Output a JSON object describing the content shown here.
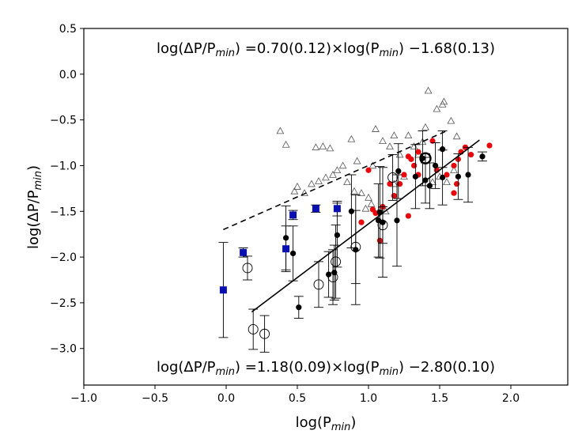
{
  "chart_data": {
    "type": "scatter",
    "xlim": [
      -1.0,
      2.4
    ],
    "ylim": [
      -3.4,
      0.5
    ],
    "x_ticks": [
      -1.0,
      -0.5,
      0.0,
      0.5,
      1.0,
      1.5,
      2.0
    ],
    "x_tick_labels": [
      "−1.0",
      "−0.5",
      "0.0",
      "0.5",
      "1.0",
      "1.5",
      "2.0"
    ],
    "y_ticks": [
      -3.0,
      -2.5,
      -2.0,
      -1.5,
      -1.0,
      -0.5,
      0.0,
      0.5
    ],
    "y_tick_labels": [
      "−3.0",
      "−2.5",
      "−2.0",
      "−1.5",
      "−1.0",
      "−0.5",
      "0.0",
      "0.5"
    ],
    "xlabel": {
      "base": "log(P",
      "sub": "min",
      "end": ")"
    },
    "ylabel": {
      "base": "log(ΔP/P",
      "sub": "min",
      "end": ")"
    },
    "annotations": {
      "top": {
        "lhs_base": "log(ΔP/P",
        "lhs_sub": "min",
        "mid": ") =0.70(0.12)×log(P",
        "rhs_sub": "min",
        "end": ") −1.68(0.13)"
      },
      "bottom": {
        "lhs_base": "log(ΔP/P",
        "lhs_sub": "min",
        "mid": ") =1.18(0.09)×log(P",
        "rhs_sub": "min",
        "end": ") −2.80(0.10)"
      }
    },
    "fit_lines": [
      {
        "name": "upper fit (dashed)",
        "x": [
          -0.02,
          1.55
        ],
        "y": [
          -1.7,
          -0.62
        ],
        "style": "dashed"
      },
      {
        "name": "lower fit (solid)",
        "x": [
          0.18,
          1.78
        ],
        "y": [
          -2.6,
          -0.72
        ],
        "style": "solid"
      }
    ],
    "series": [
      {
        "name": "open triangles",
        "marker": "triangle-open",
        "color": "#555555",
        "points": [
          [
            0.38,
            -0.62
          ],
          [
            0.42,
            -0.77
          ],
          [
            0.63,
            -0.8
          ],
          [
            0.68,
            -0.79
          ],
          [
            0.73,
            -0.81
          ],
          [
            0.88,
            -0.71
          ],
          [
            1.05,
            -0.6
          ],
          [
            1.1,
            -0.73
          ],
          [
            1.15,
            -0.79
          ],
          [
            1.18,
            -0.67
          ],
          [
            1.22,
            -0.88
          ],
          [
            1.28,
            -0.67
          ],
          [
            1.32,
            -0.79
          ],
          [
            1.4,
            -0.58
          ],
          [
            1.42,
            -0.18
          ],
          [
            1.48,
            -0.38
          ],
          [
            1.52,
            -0.33
          ],
          [
            1.53,
            -0.3
          ],
          [
            1.58,
            -0.51
          ],
          [
            1.62,
            -0.68
          ],
          [
            1.35,
            -0.88
          ],
          [
            1.38,
            -0.74
          ],
          [
            0.82,
            -1.0
          ],
          [
            0.78,
            -1.05
          ],
          [
            0.75,
            -1.1
          ],
          [
            0.7,
            -1.13
          ],
          [
            0.65,
            -1.17
          ],
          [
            0.6,
            -1.2
          ],
          [
            0.55,
            -1.3
          ],
          [
            0.5,
            -1.23
          ],
          [
            0.48,
            -1.28
          ],
          [
            0.85,
            -1.18
          ],
          [
            0.9,
            -1.28
          ],
          [
            0.95,
            -1.3
          ],
          [
            1.0,
            -1.35
          ],
          [
            1.02,
            -1.42
          ],
          [
            1.08,
            -1.48
          ],
          [
            1.12,
            -1.5
          ],
          [
            1.18,
            -1.2
          ],
          [
            1.25,
            -1.12
          ],
          [
            0.98,
            -1.47
          ],
          [
            1.45,
            -1.18
          ],
          [
            1.5,
            -1.12
          ],
          [
            1.55,
            -1.18
          ],
          [
            1.6,
            -1.05
          ],
          [
            0.92,
            -0.95
          ],
          [
            1.03,
            -1.0
          ]
        ]
      },
      {
        "name": "red dots",
        "marker": "circle",
        "color": "#e8070a",
        "points": [
          [
            0.95,
            -1.62
          ],
          [
            1.0,
            -1.05
          ],
          [
            1.03,
            -1.48
          ],
          [
            1.05,
            -1.52
          ],
          [
            1.08,
            -1.82
          ],
          [
            1.1,
            -1.45
          ],
          [
            1.15,
            -1.2
          ],
          [
            1.18,
            -1.33
          ],
          [
            1.22,
            -1.2
          ],
          [
            1.25,
            -1.1
          ],
          [
            1.28,
            -0.9
          ],
          [
            1.3,
            -0.93
          ],
          [
            1.32,
            -1.0
          ],
          [
            1.35,
            -1.1
          ],
          [
            1.45,
            -0.73
          ],
          [
            1.48,
            -1.05
          ],
          [
            1.55,
            -1.1
          ],
          [
            1.6,
            -1.0
          ],
          [
            1.63,
            -0.93
          ],
          [
            1.65,
            -0.85
          ],
          [
            1.68,
            -0.8
          ],
          [
            1.72,
            -0.88
          ],
          [
            1.85,
            -0.78
          ],
          [
            1.6,
            -1.3
          ],
          [
            1.62,
            -1.2
          ],
          [
            1.28,
            -1.55
          ],
          [
            1.35,
            -0.85
          ]
        ]
      },
      {
        "name": "black dots with error bars",
        "marker": "circle",
        "color": "#000000",
        "points": [
          [
            0.42,
            -1.79,
            0.35
          ],
          [
            0.47,
            -1.96,
            0.3
          ],
          [
            0.51,
            -2.55,
            0.12
          ],
          [
            0.72,
            -2.19,
            0.25
          ],
          [
            0.76,
            -2.17,
            0.3
          ],
          [
            0.78,
            -1.76,
            0.35
          ],
          [
            0.88,
            -1.5,
            0.4
          ],
          [
            0.91,
            -1.92,
            0.6
          ],
          [
            1.07,
            -1.6,
            0.4
          ],
          [
            1.08,
            -1.51,
            0.5
          ],
          [
            1.1,
            -1.62,
            0.6
          ],
          [
            1.2,
            -1.6,
            0.5
          ],
          [
            1.21,
            -1.06,
            0.3
          ],
          [
            1.33,
            -1.12,
            0.35
          ],
          [
            1.38,
            -0.92,
            0.3
          ],
          [
            1.4,
            -1.16,
            0.25
          ],
          [
            1.43,
            -1.22,
            0.25
          ],
          [
            1.47,
            -1.0,
            0.25
          ],
          [
            1.52,
            -0.82,
            0.2
          ],
          [
            1.52,
            -1.13,
            0.3
          ],
          [
            1.63,
            -1.12,
            0.25
          ],
          [
            1.7,
            -1.1,
            0.3
          ],
          [
            1.8,
            -0.9,
            0.05
          ]
        ]
      },
      {
        "name": "open circles with error bars",
        "marker": "circle-open",
        "color": "#000000",
        "points": [
          [
            0.15,
            -2.12,
            0.13
          ],
          [
            0.19,
            -2.79,
            0.22
          ],
          [
            0.27,
            -2.84,
            0.2
          ],
          [
            0.65,
            -2.3,
            0.25
          ],
          [
            0.75,
            -2.22,
            0.3
          ],
          [
            0.77,
            -2.05,
            0.4
          ],
          [
            0.91,
            -1.89,
            0.4
          ],
          [
            1.1,
            -1.65,
            0.2
          ],
          [
            1.17,
            -1.13,
            0.25
          ],
          [
            1.4,
            -0.92,
            0.05
          ]
        ]
      },
      {
        "name": "blue squares with error bars",
        "marker": "square",
        "color": "#0a10b0",
        "points": [
          [
            -0.02,
            -2.36,
            0.52
          ],
          [
            0.12,
            -1.95,
            0.05
          ],
          [
            0.42,
            -1.91,
            0.25
          ],
          [
            0.47,
            -1.54,
            0.05
          ],
          [
            0.63,
            -1.47,
            0.04
          ],
          [
            0.78,
            -1.47,
            0.08
          ]
        ]
      }
    ]
  }
}
